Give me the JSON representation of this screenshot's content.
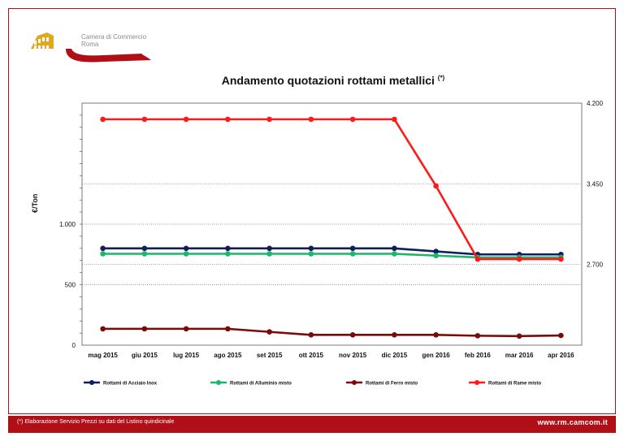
{
  "logo": {
    "line1": "Camera di Commercio",
    "line2": "Roma"
  },
  "chart_data": {
    "type": "line",
    "title": "Andamento quotazioni rottami metallici",
    "title_note": "(*)",
    "ylabel": "€/Ton",
    "categories": [
      "mag 2015",
      "giu 2015",
      "lug 2015",
      "ago 2015",
      "set 2015",
      "ott 2015",
      "nov 2015",
      "dic 2015",
      "gen 2016",
      "feb 2016",
      "mar 2016",
      "apr 2016"
    ],
    "ylim": [
      0,
      2000
    ],
    "y_ticks": [
      {
        "v": 0,
        "label": "0"
      },
      {
        "v": 500,
        "label": "500"
      },
      {
        "v": 1000,
        "label": "1.000"
      }
    ],
    "y2lim": [
      1950,
      4200
    ],
    "y2_ticks": [
      {
        "v": 2700,
        "label": "2.700"
      },
      {
        "v": 3450,
        "label": "3.450"
      },
      {
        "v": 4200,
        "label": "4.200"
      }
    ],
    "series": [
      {
        "name": "Rottami di Acciaio Inox",
        "axis": "left",
        "color": "#0f1f5e",
        "values": [
          800,
          800,
          800,
          800,
          800,
          800,
          800,
          800,
          775,
          750,
          750,
          750
        ]
      },
      {
        "name": "Rottami di Alluminio misto",
        "axis": "left",
        "color": "#1db56a",
        "values": [
          755,
          755,
          755,
          755,
          755,
          755,
          755,
          755,
          740,
          725,
          725,
          725
        ]
      },
      {
        "name": "Rottami di Ferro misto",
        "axis": "left",
        "color": "#7a0a0a",
        "values": [
          135,
          135,
          135,
          135,
          110,
          85,
          85,
          85,
          85,
          78,
          75,
          80
        ]
      },
      {
        "name": "Rottami di Rame misto",
        "axis": "right",
        "color": "#ff1a1a",
        "values": [
          4050,
          4050,
          4050,
          4050,
          4050,
          4050,
          4050,
          4050,
          3430,
          2750,
          2750,
          2750
        ]
      }
    ],
    "grid": true,
    "legend_position": "bottom"
  },
  "footer": {
    "note": "(*) Elaborazione Servizio Prezzi su dati del Listino quindicinale",
    "url": "www.rm.camcom.it"
  }
}
